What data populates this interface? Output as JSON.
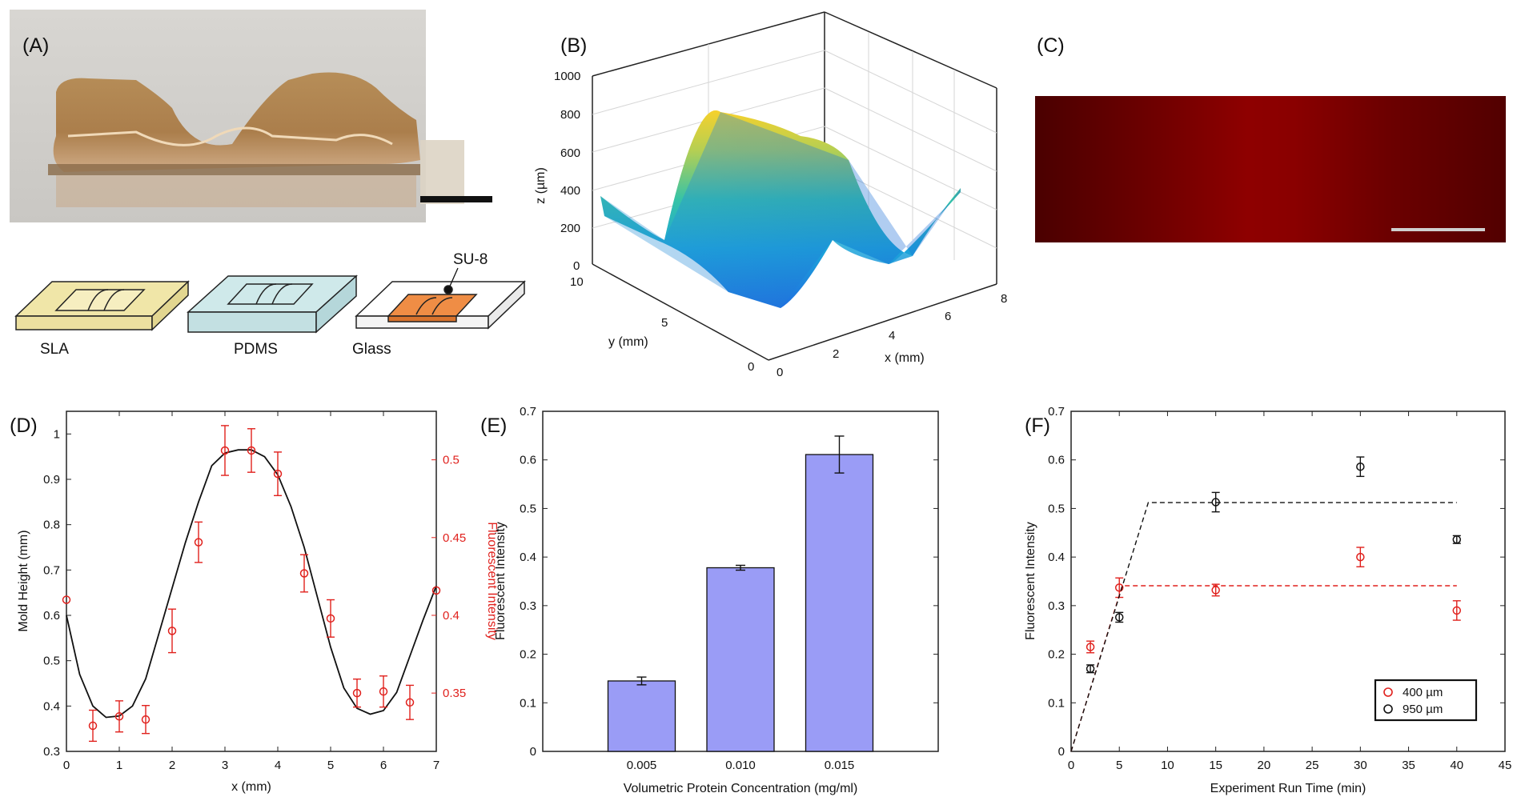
{
  "panels": {
    "a": "(A)",
    "b": "(B)",
    "c": "(C)",
    "d": "(D)",
    "e": "(E)",
    "f": "(F)"
  },
  "schematic": {
    "sla": "SLA",
    "pdms": "PDMS",
    "glass": "Glass",
    "su8": "SU-8"
  },
  "chart_data": [
    {
      "panel": "B",
      "type": "surface",
      "title": "",
      "xlabel": "x (mm)",
      "ylabel": "y (mm)",
      "zlabel": "z (µm)",
      "xticks": [
        "0",
        "2",
        "4",
        "6",
        "8"
      ],
      "yticks": [
        "0",
        "5",
        "10"
      ],
      "zticks": [
        "0",
        "200",
        "400",
        "600",
        "800",
        "1000"
      ],
      "xlim": [
        0,
        8
      ],
      "ylim": [
        0,
        10
      ],
      "zlim": [
        0,
        1000
      ],
      "profile_x": [
        0,
        1,
        2,
        3,
        3.5,
        4,
        5,
        5.8,
        7
      ],
      "profile_z": [
        380,
        340,
        600,
        940,
        960,
        900,
        500,
        240,
        380
      ]
    },
    {
      "panel": "D",
      "type": "line+scatter",
      "xlabel": "x (mm)",
      "ylabel": "Mold Height (mm)",
      "ylabel_right": "Fluorescent Intensity",
      "xlim": [
        0,
        7
      ],
      "ylim": [
        0.3,
        1.05
      ],
      "ylim_right": [
        0.3125,
        0.5312
      ],
      "xticks": [
        "0",
        "1",
        "2",
        "3",
        "4",
        "5",
        "6",
        "7"
      ],
      "yticks": [
        "0.3",
        "0.4",
        "0.5",
        "0.6",
        "0.7",
        "0.8",
        "0.9",
        "1"
      ],
      "yticks_right": [
        "0.35",
        "0.4",
        "0.45",
        "0.5"
      ],
      "line_x": [
        0,
        0.25,
        0.5,
        0.75,
        1,
        1.25,
        1.5,
        1.75,
        2,
        2.25,
        2.5,
        2.75,
        3,
        3.25,
        3.5,
        3.75,
        4,
        4.25,
        4.5,
        4.75,
        5,
        5.25,
        5.5,
        5.75,
        6,
        6.25,
        6.5,
        6.75,
        7
      ],
      "line_y": [
        0.6,
        0.47,
        0.4,
        0.375,
        0.378,
        0.4,
        0.46,
        0.56,
        0.66,
        0.76,
        0.85,
        0.93,
        0.958,
        0.965,
        0.965,
        0.95,
        0.91,
        0.84,
        0.75,
        0.64,
        0.53,
        0.44,
        0.395,
        0.382,
        0.39,
        0.43,
        0.51,
        0.59,
        0.665
      ],
      "points_x": [
        0,
        0.5,
        1,
        1.5,
        2,
        2.5,
        3,
        3.5,
        4,
        4.5,
        5,
        5.5,
        6,
        6.5,
        7
      ],
      "points_y": [
        0.41,
        0.329,
        0.335,
        0.333,
        0.39,
        0.447,
        0.506,
        0.506,
        0.491,
        0.427,
        0.398,
        0.35,
        0.351,
        0.344,
        0.416
      ],
      "points_err": [
        0.0,
        0.01,
        0.01,
        0.009,
        0.014,
        0.013,
        0.016,
        0.014,
        0.014,
        0.012,
        0.012,
        0.009,
        0.01,
        0.011,
        0.0
      ]
    },
    {
      "panel": "E",
      "type": "bar",
      "xlabel": "Volumetric Protein Concentration (mg/ml)",
      "ylabel": "Fluorescent Intensity",
      "categories": [
        "0.005",
        "0.010",
        "0.015"
      ],
      "values": [
        0.145,
        0.378,
        0.611
      ],
      "errors": [
        0.008,
        0.005,
        0.038
      ],
      "ylim": [
        0,
        0.7
      ],
      "yticks": [
        "0",
        "0.1",
        "0.2",
        "0.3",
        "0.4",
        "0.5",
        "0.6",
        "0.7"
      ],
      "color": "#9a9cf6"
    },
    {
      "panel": "F",
      "type": "scatter",
      "xlabel": "Experiment Run Time (min)",
      "ylabel": "Fluorescent Intensity",
      "xlim": [
        0,
        45
      ],
      "ylim": [
        0,
        0.7
      ],
      "xticks": [
        "0",
        "5",
        "10",
        "15",
        "20",
        "25",
        "30",
        "35",
        "40",
        "45"
      ],
      "yticks": [
        "0",
        "0.1",
        "0.2",
        "0.3",
        "0.4",
        "0.5",
        "0.6",
        "0.7"
      ],
      "legend_position": "bottom-right",
      "series": [
        {
          "name": "400 µm",
          "color": "#e0211d",
          "x": [
            2,
            5,
            15,
            30,
            40
          ],
          "y": [
            0.215,
            0.337,
            0.332,
            0.4,
            0.29
          ],
          "err": [
            0.012,
            0.02,
            0.012,
            0.02,
            0.02
          ],
          "fit_x": [
            0,
            5.3,
            40
          ],
          "fit_y": [
            0,
            0.341,
            0.341
          ]
        },
        {
          "name": "950 µm",
          "color": "#111111",
          "x": [
            2,
            5,
            15,
            30,
            40
          ],
          "y": [
            0.17,
            0.276,
            0.513,
            0.586,
            0.436
          ],
          "err": [
            0.008,
            0.01,
            0.02,
            0.02,
            0.008
          ],
          "fit_x": [
            0,
            8,
            40
          ],
          "fit_y": [
            0,
            0.512,
            0.512
          ]
        }
      ]
    }
  ]
}
